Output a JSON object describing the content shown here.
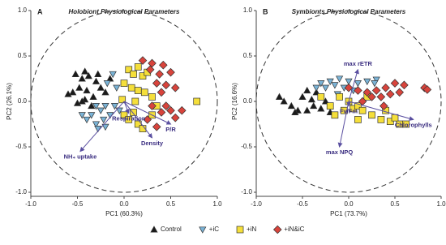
{
  "chart_data": [
    {
      "type": "scatter",
      "panel": "A",
      "title": "Holobiont Physiological Parameters",
      "x_label": "PC1 (60.3%)",
      "y_label": "PC2 (26.1%)",
      "xlim": [
        -1,
        1
      ],
      "ylim": [
        -1,
        1
      ],
      "xticks": [
        {
          "value": -1,
          "label": "-1.0"
        },
        -0.5,
        {
          "value": 0,
          "label": "0.0"
        },
        0.5,
        {
          "value": 1,
          "label": "1.0"
        }
      ],
      "yticks": [
        {
          "value": -1,
          "label": "-1.0"
        },
        -0.5,
        {
          "value": 0,
          "label": "0.0"
        },
        0.5,
        {
          "value": 1,
          "label": "1.0"
        }
      ],
      "legend": "bottom",
      "series": [
        {
          "name": "Control",
          "color": "#1a1a1a",
          "marker": "triangle",
          "x": [
            -0.52,
            -0.45,
            -0.38,
            -0.3,
            -0.48,
            -0.4,
            -0.25,
            -0.55,
            -0.42,
            -0.33,
            -0.5,
            -0.45,
            -0.2,
            -0.35,
            -0.6,
            -0.28,
            -0.15,
            -0.42
          ],
          "values": [
            0.3,
            0.25,
            0.28,
            0.22,
            0.15,
            0.12,
            0.15,
            0.1,
            0.02,
            0.05,
            -0.02,
            0,
            0.1,
            -0.05,
            0.08,
            0.3,
            0.25,
            0.33
          ]
        },
        {
          "name": "+iC",
          "color": "#7ab3d6",
          "marker": "triangle-down",
          "x": [
            -0.3,
            -0.25,
            -0.2,
            -0.35,
            -0.3,
            -0.28,
            -0.22,
            -0.15,
            -0.1,
            -0.05,
            -0.4,
            -0.18,
            -0.12,
            -0.08,
            -0.2,
            -0.45
          ],
          "values": [
            -0.05,
            -0.1,
            -0.05,
            -0.15,
            -0.25,
            -0.3,
            -0.2,
            -0.15,
            -0.05,
            -0.1,
            -0.2,
            0.2,
            0.3,
            0.15,
            -0.28,
            -0.15
          ]
        },
        {
          "name": "+iN",
          "color": "#f5df3a",
          "marker": "square",
          "x": [
            0.05,
            0.1,
            0.15,
            0.2,
            0.25,
            0,
            0.08,
            0.15,
            0.22,
            0.3,
            0,
            0.05,
            0.1,
            0.15,
            0.2,
            0.3,
            0.35,
            0.78,
            -0.02,
            0.12
          ],
          "values": [
            0.35,
            0.3,
            0.38,
            0.28,
            0.32,
            0.2,
            0.15,
            0.12,
            0.1,
            0.05,
            -0.15,
            -0.2,
            -0.12,
            -0.25,
            -0.3,
            -0.15,
            -0.05,
            0,
            0.02,
            0
          ]
        },
        {
          "name": "+iN&iC",
          "color": "#d8443c",
          "marker": "diamond",
          "x": [
            0.2,
            0.3,
            0.28,
            0.38,
            0.42,
            0.5,
            0.35,
            0.45,
            0.55,
            0.4,
            0.3,
            0.45,
            0.5,
            0.4,
            0.25,
            0.55,
            0.62,
            0.35
          ],
          "values": [
            0.45,
            0.42,
            0.35,
            0.3,
            0.4,
            0.32,
            0.2,
            0.18,
            0.15,
            0.1,
            -0.05,
            -0.05,
            -0.1,
            -0.12,
            -0.2,
            -0.18,
            -0.1,
            -0.28
          ]
        }
      ],
      "loadings": [
        {
          "label": "NH₄ uptake",
          "x": -0.47,
          "y": -0.55
        },
        {
          "label": "Density",
          "x": 0.3,
          "y": -0.4
        },
        {
          "label": "P/R",
          "x": 0.5,
          "y": -0.25
        },
        {
          "label": "Respiration",
          "x": 0.05,
          "y": -0.13
        }
      ]
    },
    {
      "type": "scatter",
      "panel": "B",
      "title": "Symbionts Physiological Parameters",
      "x_label": "PC1 (73.7%)",
      "y_label": "PC2 (16.6%)",
      "xlim": [
        -1,
        1
      ],
      "ylim": [
        -1,
        1
      ],
      "xticks": [
        {
          "value": -1,
          "label": "-1.0"
        },
        -0.5,
        {
          "value": 0,
          "label": "0.0"
        },
        0.5,
        {
          "value": 1,
          "label": "1.0"
        }
      ],
      "yticks": [
        {
          "value": -1,
          "label": "-1.0"
        },
        -0.5,
        {
          "value": 0,
          "label": "0.0"
        },
        0.5,
        {
          "value": 1,
          "label": "1.0"
        }
      ],
      "series": [
        {
          "color": "#1a1a1a",
          "marker": "triangle",
          "x": [
            -0.75,
            -0.7,
            -0.62,
            -0.55,
            -0.45,
            -0.5,
            -0.4,
            -0.38,
            -0.3,
            -0.45,
            -0.35,
            -0.25,
            -0.2,
            -0.58
          ],
          "values": [
            0.05,
            0,
            -0.05,
            -0.1,
            -0.1,
            0.05,
            0.02,
            -0.05,
            -0.08,
            0.12,
            0.1,
            0,
            -0.12,
            -0.12
          ]
        },
        {
          "color": "#7ab3d6",
          "marker": "triangle-down",
          "x": [
            -0.3,
            -0.25,
            -0.2,
            -0.15,
            -0.1,
            -0.05,
            0,
            0.1,
            0.2,
            0.3,
            -0.35,
            0.05,
            -0.12,
            0.28
          ],
          "values": [
            0.2,
            0.15,
            0.22,
            0.18,
            0.25,
            0.15,
            0.22,
            0.2,
            0.22,
            0.24,
            0.15,
            0.12,
            0.08,
            0.2
          ]
        },
        {
          "color": "#f5df3a",
          "marker": "square",
          "x": [
            -0.3,
            -0.2,
            -0.1,
            -0.05,
            0,
            0.05,
            0.1,
            0.15,
            0.25,
            0.35,
            0.45,
            0.55,
            0.62,
            0.5,
            0.4,
            -0.15,
            0.2,
            0.1
          ],
          "values": [
            0.05,
            -0.05,
            0.05,
            -0.1,
            0,
            -0.08,
            -0.05,
            -0.1,
            -0.15,
            -0.2,
            -0.22,
            -0.25,
            -0.25,
            -0.18,
            -0.1,
            -0.15,
            0.05,
            -0.2
          ]
        },
        {
          "color": "#d8443c",
          "marker": "diamond",
          "x": [
            0,
            0.1,
            0.2,
            0.3,
            0.4,
            0.5,
            0.45,
            0.55,
            0.35,
            0.25,
            0.6,
            0.82,
            0.85,
            0.15,
            0.38
          ],
          "values": [
            0.15,
            0.12,
            0.1,
            0.12,
            0.15,
            0.2,
            0.08,
            0.1,
            0.05,
            0.05,
            0.18,
            0.15,
            0.13,
            0,
            -0.05
          ]
        }
      ],
      "loadings": [
        {
          "label": "max rETR",
          "x": 0.1,
          "y": 0.35
        },
        {
          "label": "max NPQ",
          "x": -0.1,
          "y": -0.5
        },
        {
          "label": "Chlorophylls",
          "x": 0.7,
          "y": -0.2
        },
        {
          "label": "Fv/Fm",
          "x": 0,
          "y": -0.05
        }
      ]
    }
  ]
}
